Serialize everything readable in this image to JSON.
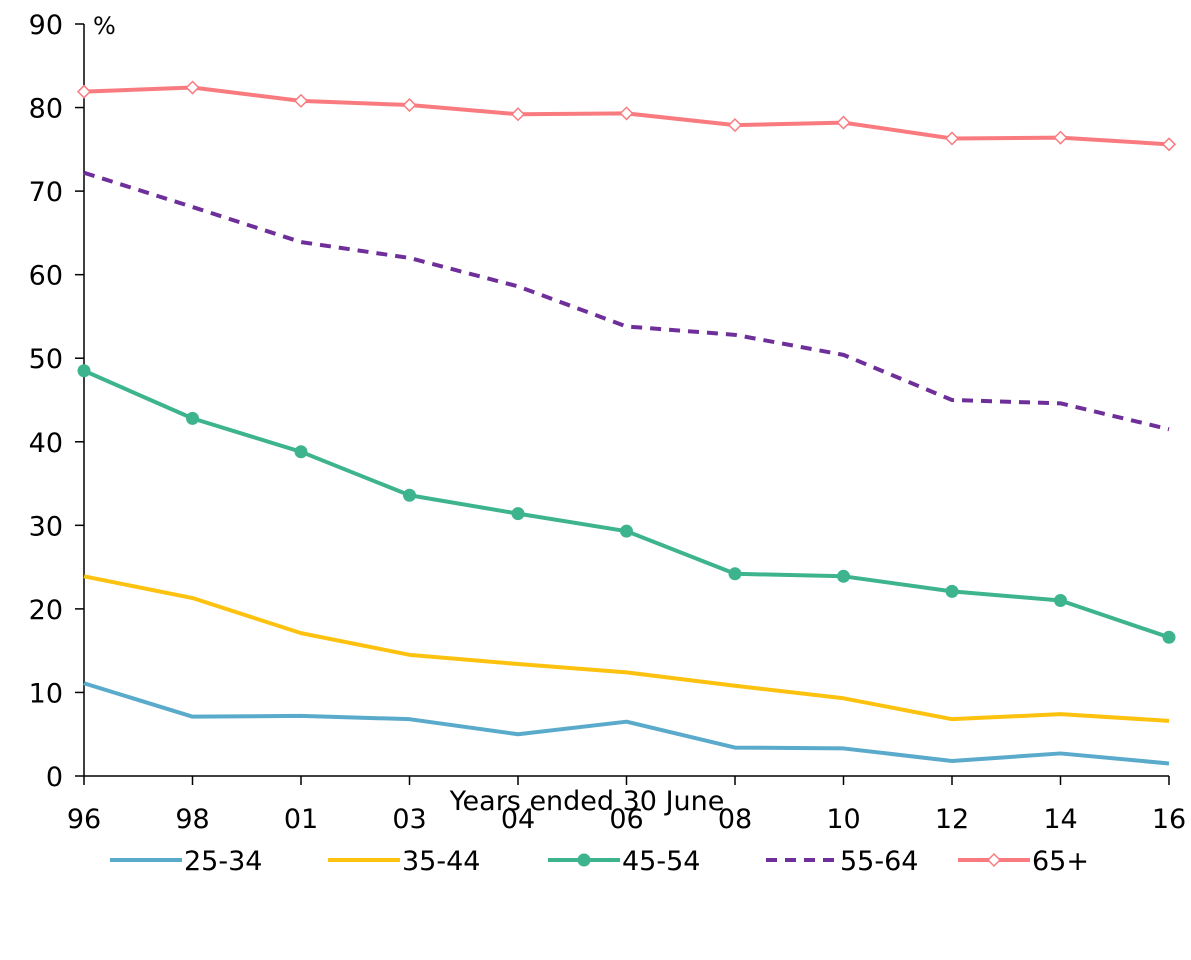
{
  "chart_data": {
    "type": "line",
    "title": "",
    "xlabel": "Years ended 30 June",
    "ylabel": "%",
    "categories": [
      "96",
      "98",
      "01",
      "03",
      "04",
      "06",
      "08",
      "10",
      "12",
      "14",
      "16"
    ],
    "ylim": [
      0,
      90
    ],
    "yticks": [
      "0",
      "10",
      "20",
      "30",
      "40",
      "50",
      "60",
      "70",
      "80",
      "90"
    ],
    "grid": false,
    "legend_position": "bottom",
    "series": [
      {
        "name": "25-34",
        "color": "#5aaacb",
        "style": "solid",
        "marker": "none",
        "values": [
          11.1,
          7.1,
          7.2,
          6.8,
          5.0,
          6.5,
          3.4,
          3.3,
          1.8,
          2.7,
          1.5
        ]
      },
      {
        "name": "35-44",
        "color": "#fcc20f",
        "style": "solid",
        "marker": "none",
        "values": [
          23.9,
          21.3,
          17.1,
          14.5,
          13.4,
          12.4,
          10.8,
          9.3,
          6.8,
          7.4,
          6.6
        ]
      },
      {
        "name": "45-54",
        "color": "#3db48e",
        "style": "solid",
        "marker": "circle",
        "values": [
          48.5,
          42.8,
          38.8,
          33.6,
          31.4,
          29.3,
          24.2,
          23.9,
          22.1,
          21.0,
          16.6
        ]
      },
      {
        "name": "55-64",
        "color": "#6f2f9a",
        "style": "dashed",
        "marker": "none",
        "values": [
          72.2,
          68.1,
          63.9,
          62.0,
          58.6,
          53.8,
          52.8,
          50.4,
          45.0,
          44.6,
          41.5
        ]
      },
      {
        "name": "65+",
        "color": "#f97b7f",
        "style": "solid",
        "marker": "diamond",
        "values": [
          81.9,
          82.4,
          80.8,
          80.3,
          79.2,
          79.3,
          77.9,
          78.2,
          76.3,
          76.4,
          75.6
        ]
      }
    ]
  }
}
